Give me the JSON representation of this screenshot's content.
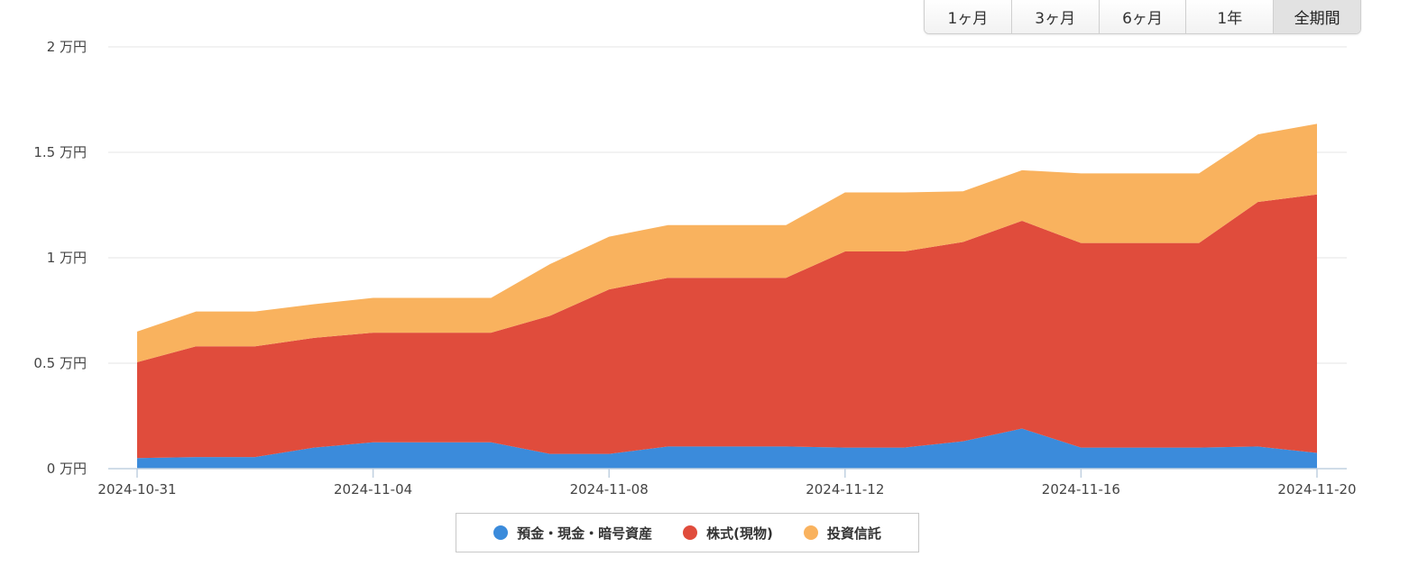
{
  "range_buttons": [
    {
      "label": "1ヶ月",
      "active": false
    },
    {
      "label": "3ヶ月",
      "active": false
    },
    {
      "label": "6ヶ月",
      "active": false
    },
    {
      "label": "1年",
      "active": false
    },
    {
      "label": "全期間",
      "active": true
    }
  ],
  "chart_data": {
    "type": "area",
    "stacked": true,
    "x": [
      "2024-10-31",
      "2024-11-01",
      "2024-11-02",
      "2024-11-03",
      "2024-11-04",
      "2024-11-05",
      "2024-11-06",
      "2024-11-07",
      "2024-11-08",
      "2024-11-09",
      "2024-11-10",
      "2024-11-11",
      "2024-11-12",
      "2024-11-13",
      "2024-11-14",
      "2024-11-15",
      "2024-11-16",
      "2024-11-17",
      "2024-11-18",
      "2024-11-19",
      "2024-11-20"
    ],
    "x_ticks": [
      "2024-10-31",
      "2024-11-04",
      "2024-11-08",
      "2024-11-12",
      "2024-11-16",
      "2024-11-20"
    ],
    "y_ticks": [
      "0 万円",
      "0.5 万円",
      "1 万円",
      "1.5 万円",
      "2 万円"
    ],
    "y_unit": "万円",
    "ylim": [
      0,
      2
    ],
    "grid": true,
    "legend_position": "bottom-center",
    "series": [
      {
        "name": "預金・現金・暗号資産",
        "color": "#3b8bdb",
        "values": [
          0.05,
          0.055,
          0.055,
          0.1,
          0.125,
          0.125,
          0.125,
          0.07,
          0.07,
          0.105,
          0.105,
          0.105,
          0.1,
          0.1,
          0.13,
          0.19,
          0.1,
          0.1,
          0.1,
          0.105,
          0.075
        ]
      },
      {
        "name": "株式(現物)",
        "color": "#e04c3c",
        "values": [
          0.455,
          0.525,
          0.525,
          0.52,
          0.52,
          0.52,
          0.52,
          0.655,
          0.78,
          0.8,
          0.8,
          0.8,
          0.93,
          0.93,
          0.945,
          0.985,
          0.97,
          0.97,
          0.97,
          1.16,
          1.225
        ]
      },
      {
        "name": "投資信託",
        "color": "#f9b25e",
        "values": [
          0.145,
          0.165,
          0.165,
          0.16,
          0.165,
          0.165,
          0.165,
          0.245,
          0.25,
          0.25,
          0.25,
          0.25,
          0.28,
          0.28,
          0.24,
          0.24,
          0.33,
          0.33,
          0.33,
          0.32,
          0.335
        ]
      }
    ]
  }
}
